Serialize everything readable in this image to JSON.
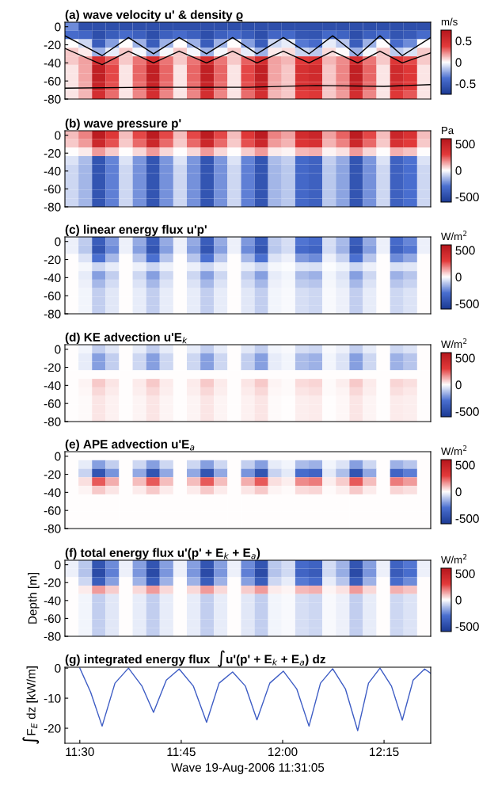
{
  "chart_data": [
    {
      "type": "heatmap",
      "title": "(a) wave velocity u' & density ϱ",
      "clabel": "m/s",
      "tick_labels": "y",
      "xlim": [
        11.4633,
        12.365
      ],
      "ylim": [
        -80,
        5
      ],
      "yticks": [
        -80,
        -60,
        -40,
        -20,
        0
      ],
      "clim": [
        -0.75,
        0.75
      ],
      "cticks": [
        -0.5,
        0,
        0.5
      ],
      "cells": [
        [
          -0.3,
          -0.6,
          -0.6,
          -0.6,
          -0.6,
          -0.6,
          -0.6,
          -0.6,
          -0.6,
          -0.6,
          -0.6,
          -0.6,
          -0.6,
          -0.6,
          -0.6,
          -0.6,
          -0.6,
          -0.6,
          -0.6,
          -0.6,
          -0.6,
          -0.6,
          -0.6,
          -0.6,
          -0.6,
          -0.6,
          -0.6
        ],
        [
          -0.4,
          -0.44,
          -0.6,
          -0.5,
          -0.4,
          -0.48,
          -0.6,
          -0.48,
          -0.4,
          -0.48,
          -0.6,
          -0.48,
          -0.4,
          -0.5,
          -0.6,
          -0.44,
          -0.42,
          -0.54,
          -0.56,
          -0.42,
          -0.46,
          -0.6,
          -0.48,
          -0.4,
          -0.56,
          -0.52,
          -0.4
        ],
        [
          0,
          -0.1,
          -0.5,
          -0.25,
          0,
          -0.2,
          -0.5,
          -0.2,
          0,
          -0.2,
          -0.5,
          -0.2,
          0,
          -0.25,
          -0.5,
          -0.1,
          -0.05,
          -0.35,
          -0.4,
          -0.05,
          -0.15,
          -0.5,
          -0.2,
          0,
          -0.4,
          -0.3,
          0
        ],
        [
          0.1,
          0.04,
          -0.2,
          -0.05,
          0.1,
          -0.02,
          -0.2,
          -0.02,
          0.1,
          -0.02,
          -0.2,
          -0.02,
          0.1,
          -0.05,
          -0.2,
          0.04,
          0.07,
          -0.11,
          -0.14,
          0.07,
          0.01,
          -0.2,
          -0.02,
          0.1,
          -0.14,
          -0.08,
          0.1
        ],
        [
          0.1,
          0.18,
          0.5,
          0.3,
          0.1,
          0.26,
          0.5,
          0.26,
          0.1,
          0.26,
          0.5,
          0.26,
          0.1,
          0.3,
          0.5,
          0.18,
          0.14,
          0.38,
          0.42,
          0.14,
          0.22,
          0.5,
          0.26,
          0.1,
          0.42,
          0.34,
          0.1
        ],
        [
          0.05,
          0.17,
          0.65,
          0.35,
          0.05,
          0.29,
          0.65,
          0.29,
          0.05,
          0.29,
          0.65,
          0.29,
          0.05,
          0.35,
          0.65,
          0.17,
          0.11,
          0.47,
          0.53,
          0.11,
          0.23,
          0.65,
          0.29,
          0.05,
          0.53,
          0.41,
          0.05
        ],
        [
          0.05,
          0.17,
          0.65,
          0.35,
          0.05,
          0.29,
          0.65,
          0.29,
          0.05,
          0.29,
          0.65,
          0.29,
          0.05,
          0.35,
          0.65,
          0.17,
          0.11,
          0.47,
          0.53,
          0.11,
          0.23,
          0.65,
          0.29,
          0.05,
          0.53,
          0.41,
          0.05
        ],
        [
          0.05,
          0.16,
          0.6,
          0.33,
          0.05,
          0.27,
          0.6,
          0.27,
          0.05,
          0.27,
          0.6,
          0.27,
          0.05,
          0.33,
          0.6,
          0.16,
          0.11,
          0.44,
          0.49,
          0.11,
          0.22,
          0.6,
          0.27,
          0.05,
          0.49,
          0.38,
          0.05
        ],
        [
          0.05,
          0.14,
          0.5,
          0.28,
          0.05,
          0.23,
          0.5,
          0.23,
          0.05,
          0.23,
          0.5,
          0.23,
          0.05,
          0.28,
          0.5,
          0.14,
          0.1,
          0.37,
          0.41,
          0.1,
          0.19,
          0.5,
          0.23,
          0.05,
          0.41,
          0.32,
          0.05
        ]
      ],
      "series": [
        {
          "type": "line",
          "color": "#000000",
          "x": [
            11.4633,
            11.555,
            11.62,
            11.6817,
            11.745,
            11.8125,
            11.8767,
            11.9367,
            12.0017,
            12.065,
            12.1233,
            12.185,
            12.24,
            12.295,
            12.365
          ],
          "values": [
            -10,
            -32,
            -12,
            -30,
            -12,
            -30,
            -12,
            -30,
            -12,
            -30,
            -10,
            -32,
            -10,
            -32,
            -12
          ]
        },
        {
          "type": "line",
          "color": "#000000",
          "x": [
            11.4633,
            11.555,
            11.62,
            11.6817,
            11.745,
            11.8125,
            11.8767,
            11.9367,
            12.0017,
            12.065,
            12.1233,
            12.185,
            12.24,
            12.295,
            12.365
          ],
          "values": [
            -24,
            -42,
            -27,
            -40,
            -27,
            -40,
            -27,
            -40,
            -27,
            -40,
            -27,
            -40,
            -27,
            -40,
            -29
          ]
        },
        {
          "type": "line",
          "color": "#000000",
          "x": [
            11.4633,
            11.6667,
            11.9167,
            12.0833,
            12.25,
            12.365
          ],
          "values": [
            -68,
            -67,
            -67,
            -65,
            -66,
            -64
          ]
        }
      ]
    },
    {
      "type": "heatmap",
      "title": "(b) wave pressure p'",
      "clabel": "Pa",
      "tick_labels": "y",
      "xlim": [
        11.4633,
        12.365
      ],
      "ylim": [
        -80,
        5
      ],
      "yticks": [
        -80,
        -60,
        -40,
        -20,
        0
      ],
      "clim": [
        -600,
        600
      ],
      "cticks": [
        -500,
        0,
        500
      ],
      "cells": [
        [
          100,
          190,
          550,
          325,
          100,
          280,
          550,
          280,
          100,
          280,
          550,
          280,
          100,
          325,
          550,
          190,
          145,
          415,
          460,
          145,
          235,
          550,
          280,
          100,
          460,
          370,
          100
        ],
        [
          80,
          154,
          450,
          265,
          80,
          228,
          450,
          228,
          80,
          228,
          450,
          228,
          80,
          265,
          450,
          154,
          117,
          339,
          376,
          117,
          191,
          450,
          228,
          80,
          376,
          302,
          80
        ],
        [
          0,
          30,
          150,
          75,
          0,
          60,
          150,
          60,
          0,
          60,
          150,
          60,
          0,
          75,
          150,
          30,
          15,
          105,
          120,
          15,
          45,
          150,
          60,
          0,
          120,
          90,
          0
        ],
        [
          -60,
          -138,
          -450,
          -255,
          -60,
          -216,
          -450,
          -216,
          -60,
          -216,
          -450,
          -216,
          -60,
          -255,
          -450,
          -138,
          -99,
          -333,
          -372,
          -99,
          -177,
          -450,
          -216,
          -60,
          -372,
          -294,
          -60
        ],
        [
          -80,
          -154,
          -450,
          -265,
          -80,
          -228,
          -450,
          -228,
          -80,
          -228,
          -450,
          -228,
          -80,
          -265,
          -450,
          -154,
          -117,
          -339,
          -376,
          -117,
          -191,
          -450,
          -228,
          -80,
          -376,
          -302,
          -80
        ],
        [
          -80,
          -154,
          -450,
          -265,
          -80,
          -228,
          -450,
          -228,
          -80,
          -228,
          -450,
          -228,
          -80,
          -265,
          -450,
          -154,
          -117,
          -339,
          -376,
          -117,
          -191,
          -450,
          -228,
          -80,
          -376,
          -302,
          -80
        ],
        [
          -80,
          -154,
          -450,
          -265,
          -80,
          -228,
          -450,
          -228,
          -80,
          -228,
          -450,
          -228,
          -80,
          -265,
          -450,
          -154,
          -117,
          -339,
          -376,
          -117,
          -191,
          -450,
          -228,
          -80,
          -376,
          -302,
          -80
        ],
        [
          -80,
          -154,
          -450,
          -265,
          -80,
          -228,
          -450,
          -228,
          -80,
          -228,
          -450,
          -228,
          -80,
          -265,
          -450,
          -154,
          -117,
          -339,
          -376,
          -117,
          -191,
          -450,
          -228,
          -80,
          -376,
          -302,
          -80
        ],
        [
          -80,
          -154,
          -450,
          -265,
          -80,
          -228,
          -450,
          -228,
          -80,
          -228,
          -450,
          -228,
          -80,
          -265,
          -450,
          -154,
          -117,
          -339,
          -376,
          -117,
          -191,
          -450,
          -228,
          -80,
          -376,
          -302,
          -80
        ]
      ]
    },
    {
      "type": "heatmap",
      "title": "(c) linear energy flux u'p'",
      "clabel": "W/m$^{2}$",
      "tick_labels": "y",
      "xlim": [
        11.4633,
        12.365
      ],
      "ylim": [
        -80,
        5
      ],
      "yticks": [
        -80,
        -60,
        -40,
        -20,
        0
      ],
      "clim": [
        -600,
        600
      ],
      "cticks": [
        -500,
        0,
        500
      ],
      "cells": [
        [
          -30,
          -104,
          -400,
          -215,
          -30,
          -178,
          -400,
          -178,
          -30,
          -178,
          -400,
          -178,
          -30,
          -215,
          -400,
          -104,
          -67,
          -289,
          -326,
          -67,
          -141,
          -400,
          -178,
          -30,
          -326,
          -252,
          -30
        ],
        [
          -30,
          -114,
          -450,
          -240,
          -30,
          -198,
          -450,
          -198,
          -30,
          -198,
          -450,
          -198,
          -30,
          -240,
          -450,
          -114,
          -72,
          -324,
          -366,
          -72,
          -156,
          -450,
          -198,
          -30,
          -366,
          -282,
          -30
        ],
        [
          0,
          -60,
          -300,
          -150,
          0,
          -120,
          -300,
          -120,
          0,
          -120,
          -300,
          -120,
          0,
          -150,
          -300,
          -60,
          -30,
          -210,
          -240,
          -30,
          -90,
          -300,
          -120,
          0,
          -240,
          -180,
          0
        ],
        [
          0,
          -16,
          -80,
          -40,
          0,
          -32,
          -80,
          -32,
          0,
          -32,
          -80,
          -32,
          0,
          -40,
          -80,
          -16,
          -8,
          -56,
          -64,
          -8,
          -24,
          -80,
          -32,
          0,
          -64,
          -48,
          0
        ],
        [
          0,
          -40,
          -200,
          -100,
          0,
          -80,
          -200,
          -80,
          0,
          -80,
          -200,
          -80,
          0,
          -100,
          -200,
          -40,
          -20,
          -140,
          -160,
          -20,
          -60,
          -200,
          -80,
          0,
          -160,
          -120,
          0
        ],
        [
          0,
          -30,
          -150,
          -75,
          0,
          -60,
          -150,
          -60,
          0,
          -60,
          -150,
          -60,
          0,
          -75,
          -150,
          -30,
          -15,
          -105,
          -120,
          -15,
          -45,
          -150,
          -60,
          0,
          -120,
          -90,
          0
        ],
        [
          0,
          -20,
          -100,
          -50,
          0,
          -40,
          -100,
          -40,
          0,
          -40,
          -100,
          -40,
          0,
          -50,
          -100,
          -20,
          -10,
          -70,
          -80,
          -10,
          -30,
          -100,
          -40,
          0,
          -80,
          -60,
          0
        ],
        [
          0,
          -20,
          -100,
          -50,
          0,
          -40,
          -100,
          -40,
          0,
          -40,
          -100,
          -40,
          0,
          -50,
          -100,
          -20,
          -10,
          -70,
          -80,
          -10,
          -30,
          -100,
          -40,
          0,
          -80,
          -60,
          0
        ],
        [
          0,
          -20,
          -100,
          -50,
          0,
          -40,
          -100,
          -40,
          0,
          -40,
          -100,
          -40,
          0,
          -50,
          -100,
          -20,
          -10,
          -70,
          -80,
          -10,
          -30,
          -100,
          -40,
          0,
          -80,
          -60,
          0
        ]
      ]
    },
    {
      "type": "heatmap",
      "title": "(d) KE advection u'E$_{k}$",
      "clabel": "W/m$^{2}$",
      "tick_labels": "y",
      "xlim": [
        11.4633,
        12.365
      ],
      "ylim": [
        -80,
        5
      ],
      "yticks": [
        -80,
        -60,
        -40,
        -20,
        0
      ],
      "clim": [
        -600,
        600
      ],
      "cticks": [
        -500,
        0,
        500
      ],
      "cells": [
        [
          0,
          -20,
          -100,
          -50,
          0,
          -40,
          -100,
          -40,
          0,
          -40,
          -100,
          -40,
          0,
          -50,
          -100,
          -20,
          -10,
          -70,
          -80,
          -10,
          -30,
          -100,
          -40,
          0,
          -80,
          -60,
          0
        ],
        [
          0,
          -40,
          -200,
          -100,
          0,
          -80,
          -200,
          -80,
          0,
          -80,
          -200,
          -80,
          0,
          -100,
          -200,
          -40,
          -20,
          -140,
          -160,
          -20,
          -60,
          -200,
          -80,
          0,
          -160,
          -120,
          0
        ],
        [
          0,
          -40,
          -200,
          -100,
          0,
          -80,
          -200,
          -80,
          0,
          -80,
          -200,
          -80,
          0,
          -100,
          -200,
          -40,
          -20,
          -140,
          -160,
          -20,
          -60,
          -200,
          -80,
          0,
          -160,
          -120,
          0
        ],
        [
          0,
          0,
          0,
          0,
          0,
          0,
          0,
          0,
          0,
          0,
          0,
          0,
          0,
          0,
          0,
          0,
          0,
          0,
          0,
          0,
          0,
          0,
          0,
          0,
          0,
          0,
          0
        ],
        [
          0,
          16,
          80,
          40,
          0,
          32,
          80,
          32,
          0,
          32,
          80,
          32,
          0,
          40,
          80,
          16,
          8,
          56,
          64,
          8,
          24,
          80,
          32,
          0,
          64,
          48,
          0
        ],
        [
          0,
          12,
          60,
          30,
          0,
          24,
          60,
          24,
          0,
          24,
          60,
          24,
          0,
          30,
          60,
          12,
          6,
          42,
          48,
          6,
          18,
          60,
          24,
          0,
          48,
          36,
          0
        ],
        [
          0,
          8,
          40,
          20,
          0,
          16,
          40,
          16,
          0,
          16,
          40,
          16,
          0,
          20,
          40,
          8,
          4,
          28,
          32,
          4,
          12,
          40,
          16,
          0,
          32,
          24,
          0
        ],
        [
          0,
          8,
          40,
          20,
          0,
          16,
          40,
          16,
          0,
          16,
          40,
          16,
          0,
          20,
          40,
          8,
          4,
          28,
          32,
          4,
          12,
          40,
          16,
          0,
          32,
          24,
          0
        ],
        [
          0,
          8,
          40,
          20,
          0,
          16,
          40,
          16,
          0,
          16,
          40,
          16,
          0,
          20,
          40,
          8,
          4,
          28,
          32,
          4,
          12,
          40,
          16,
          0,
          32,
          24,
          0
        ]
      ]
    },
    {
      "type": "heatmap",
      "title": "(e) APE advection u'E$_{a}$",
      "clabel": "W/m$^{2}$",
      "tick_labels": "y",
      "xlim": [
        11.4633,
        12.365
      ],
      "ylim": [
        -80,
        5
      ],
      "yticks": [
        -80,
        -60,
        -40,
        -20,
        0
      ],
      "clim": [
        -600,
        600
      ],
      "cticks": [
        -500,
        0,
        500
      ],
      "cells": [
        [
          0,
          0,
          0,
          0,
          0,
          0,
          0,
          0,
          0,
          0,
          0,
          0,
          0,
          0,
          0,
          0,
          0,
          0,
          0,
          0,
          0,
          0,
          0,
          0,
          0,
          0,
          0
        ],
        [
          0,
          -40,
          -200,
          -100,
          0,
          -80,
          -200,
          -80,
          0,
          -80,
          -200,
          -80,
          0,
          -100,
          -200,
          -40,
          -20,
          -140,
          -160,
          -20,
          -60,
          -200,
          -80,
          0,
          -160,
          -120,
          0
        ],
        [
          0,
          -90,
          -450,
          -225,
          0,
          -180,
          -450,
          -180,
          0,
          -180,
          -450,
          -180,
          0,
          -225,
          -450,
          -90,
          -45,
          -315,
          -360,
          -45,
          -135,
          -450,
          -180,
          0,
          -360,
          -270,
          0
        ],
        [
          0,
          50,
          250,
          125,
          0,
          100,
          250,
          100,
          0,
          100,
          250,
          100,
          0,
          125,
          250,
          50,
          25,
          175,
          200,
          25,
          75,
          250,
          100,
          0,
          200,
          150,
          0
        ],
        [
          0,
          16,
          80,
          40,
          0,
          32,
          80,
          32,
          0,
          32,
          80,
          32,
          0,
          40,
          80,
          16,
          8,
          56,
          64,
          8,
          24,
          80,
          32,
          0,
          64,
          48,
          0
        ],
        [
          0,
          0,
          0,
          0,
          0,
          0,
          0,
          0,
          0,
          0,
          0,
          0,
          0,
          0,
          0,
          0,
          0,
          0,
          0,
          0,
          0,
          0,
          0,
          0,
          0,
          0,
          0
        ],
        [
          0,
          0,
          0,
          0,
          0,
          0,
          0,
          0,
          0,
          0,
          0,
          0,
          0,
          0,
          0,
          0,
          0,
          0,
          0,
          0,
          0,
          0,
          0,
          0,
          0,
          0,
          0
        ],
        [
          0,
          0,
          0,
          0,
          0,
          0,
          0,
          0,
          0,
          0,
          0,
          0,
          0,
          0,
          0,
          0,
          0,
          0,
          0,
          0,
          0,
          0,
          0,
          0,
          0,
          0,
          0
        ],
        [
          0,
          0,
          0,
          0,
          0,
          0,
          0,
          0,
          0,
          0,
          0,
          0,
          0,
          0,
          0,
          0,
          0,
          0,
          0,
          0,
          0,
          0,
          0,
          0,
          0,
          0,
          0
        ]
      ]
    },
    {
      "type": "heatmap",
      "title": "(f) total energy flux u'(p' + E$_{k}$ + E$_{a}$)",
      "ylabel": "Depth [m]",
      "clabel": "W/m$^{2}$",
      "tick_labels": "y",
      "xlim": [
        11.4633,
        12.365
      ],
      "ylim": [
        -80,
        5
      ],
      "yticks": [
        -80,
        -60,
        -40,
        -20,
        0
      ],
      "clim": [
        -600,
        600
      ],
      "cticks": [
        -500,
        0,
        500
      ],
      "cells": [
        [
          -30,
          -114,
          -450,
          -240,
          -30,
          -198,
          -450,
          -198,
          -30,
          -198,
          -450,
          -198,
          -30,
          -240,
          -450,
          -114,
          -72,
          -324,
          -366,
          -72,
          -156,
          -450,
          -198,
          -30,
          -366,
          -282,
          -30
        ],
        [
          -30,
          -124,
          -500,
          -265,
          -30,
          -218,
          -500,
          -218,
          -30,
          -218,
          -500,
          -218,
          -30,
          -265,
          -500,
          -124,
          -77,
          -359,
          -406,
          -77,
          -171,
          -500,
          -218,
          -30,
          -406,
          -312,
          -30
        ],
        [
          0,
          -80,
          -400,
          -200,
          0,
          -160,
          -400,
          -160,
          0,
          -160,
          -400,
          -160,
          0,
          -200,
          -400,
          -80,
          -40,
          -280,
          -320,
          -40,
          -120,
          -400,
          -160,
          0,
          -320,
          -240,
          0
        ],
        [
          0,
          30,
          150,
          75,
          0,
          60,
          150,
          60,
          0,
          60,
          150,
          60,
          0,
          75,
          150,
          30,
          15,
          105,
          120,
          15,
          45,
          150,
          60,
          0,
          120,
          90,
          0
        ],
        [
          0,
          -20,
          -100,
          -50,
          0,
          -40,
          -100,
          -40,
          0,
          -40,
          -100,
          -40,
          0,
          -50,
          -100,
          -20,
          -10,
          -70,
          -80,
          -10,
          -30,
          -100,
          -40,
          0,
          -80,
          -60,
          0
        ],
        [
          0,
          -20,
          -100,
          -50,
          0,
          -40,
          -100,
          -40,
          0,
          -40,
          -100,
          -40,
          0,
          -50,
          -100,
          -20,
          -10,
          -70,
          -80,
          -10,
          -30,
          -100,
          -40,
          0,
          -80,
          -60,
          0
        ],
        [
          0,
          -20,
          -100,
          -50,
          0,
          -40,
          -100,
          -40,
          0,
          -40,
          -100,
          -40,
          0,
          -50,
          -100,
          -20,
          -10,
          -70,
          -80,
          -10,
          -30,
          -100,
          -40,
          0,
          -80,
          -60,
          0
        ],
        [
          0,
          -20,
          -100,
          -50,
          0,
          -40,
          -100,
          -40,
          0,
          -40,
          -100,
          -40,
          0,
          -50,
          -100,
          -20,
          -10,
          -70,
          -80,
          -10,
          -30,
          -100,
          -40,
          0,
          -80,
          -60,
          0
        ],
        [
          0,
          -20,
          -100,
          -50,
          0,
          -40,
          -100,
          -40,
          0,
          -40,
          -100,
          -40,
          0,
          -50,
          -100,
          -20,
          -10,
          -70,
          -80,
          -10,
          -30,
          -100,
          -40,
          0,
          -80,
          -60,
          0
        ]
      ]
    },
    {
      "type": "line",
      "title": "(g) integrated energy flux  ∫u'(p' + E$_{k}$ + E$_{a}$) dz",
      "ylabel": "∫F$_{E}$ dz [kW/m]",
      "xlabel": "Wave 19-Aug-2006 11:31:05",
      "xlim": [
        11.4633,
        12.365
      ],
      "xticks": [
        {
          "value": 11.5,
          "label": "11:30"
        },
        {
          "value": 11.75,
          "label": "11:45"
        },
        {
          "value": 12.0,
          "label": "12:00"
        },
        {
          "value": 12.25,
          "label": "12:15"
        }
      ],
      "ylim": [
        -25,
        0.3
      ],
      "yticks": [
        -20,
        -10,
        0
      ],
      "series": [
        {
          "color": "#3d5cc4",
          "x": [
            11.5,
            11.5267,
            11.555,
            11.5867,
            11.62,
            11.6533,
            11.6817,
            11.7133,
            11.745,
            11.78,
            11.8125,
            11.8433,
            11.8767,
            11.9083,
            11.9367,
            11.9683,
            12.0017,
            12.035,
            12.065,
            12.0933,
            12.1233,
            12.155,
            12.185,
            12.2117,
            12.24,
            12.2683,
            12.295,
            12.3217,
            12.35,
            12.365
          ],
          "values": [
            0,
            -8,
            -19.3,
            -5,
            0,
            -6,
            -14.7,
            -4,
            -0.3,
            -6,
            -18.0,
            -5,
            -1.3,
            -6,
            -17.2,
            -5,
            -1.0,
            -7,
            -19.3,
            -5,
            -0.2,
            -7,
            -20.8,
            -5,
            0,
            -6,
            -17.3,
            -4,
            -0.3,
            -1.7
          ]
        }
      ]
    }
  ]
}
